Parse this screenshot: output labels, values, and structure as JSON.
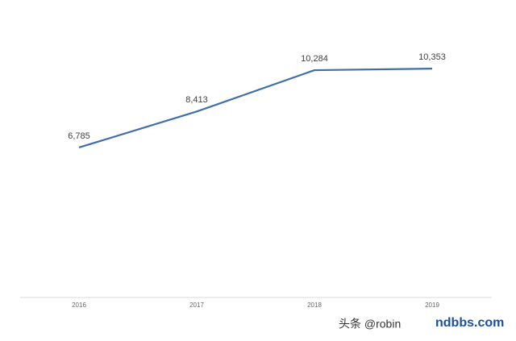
{
  "chart_data": {
    "type": "line",
    "categories": [
      "2016",
      "2017",
      "2018",
      "2019"
    ],
    "series": [
      {
        "color": "#3f6ea8",
        "values": [
          6785,
          8413,
          10284,
          10353
        ],
        "value_labels": [
          "6,785",
          "8,413",
          "10,284",
          "10,353"
        ]
      }
    ],
    "ylim": [
      0,
      12000
    ]
  },
  "watermark": {
    "source": "头条 @robin",
    "site": "ndbbs.com"
  }
}
